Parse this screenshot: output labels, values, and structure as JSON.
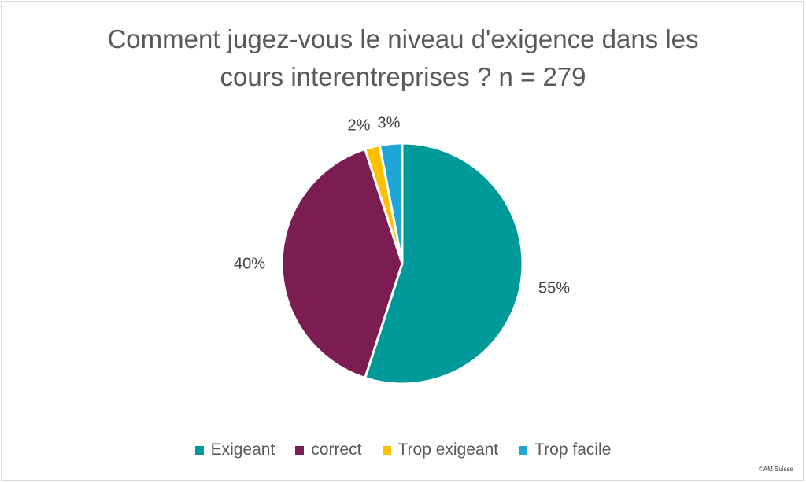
{
  "chart_data": {
    "type": "pie",
    "title_lines": [
      "Comment jugez-vous le niveau d'exigence dans les",
      "cours interentreprises ? n = 279"
    ],
    "categories": [
      "Exigeant",
      "correct",
      "Trop exigeant",
      "Trop facile"
    ],
    "values": [
      55,
      40,
      2,
      3
    ],
    "data_labels": [
      "55%",
      "40%",
      "2%",
      "3%"
    ],
    "colors": [
      "#009999",
      "#7b1d52",
      "#ffc000",
      "#1ea7d6"
    ],
    "legend_position": "bottom"
  },
  "credit": "©AM Suisse"
}
